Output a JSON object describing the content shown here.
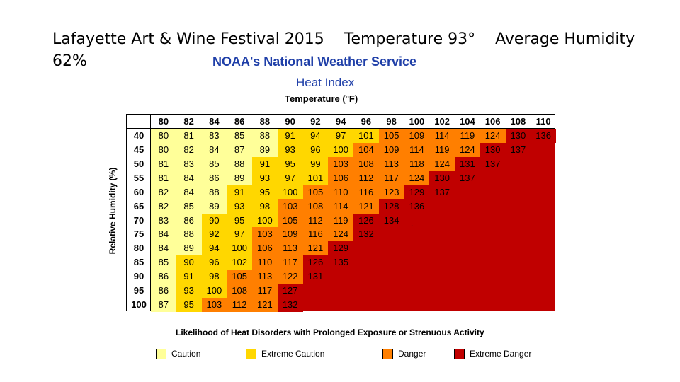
{
  "slide": {
    "title": "Lafayette Art & Wine Festival 2015    Temperature 93°    Average Humidity 62%"
  },
  "source": {
    "agency": "NOAA's National Weather Service"
  },
  "chart_data": {
    "type": "table",
    "title": "Heat Index",
    "xlabel": "Temperature (°F)",
    "ylabel": "Relative Humidity (%)",
    "temperatures": [
      "80",
      "82",
      "84",
      "86",
      "88",
      "90",
      "92",
      "94",
      "96",
      "98",
      "100",
      "102",
      "104",
      "106",
      "108",
      "110"
    ],
    "humidities": [
      "40",
      "45",
      "50",
      "55",
      "60",
      "65",
      "70",
      "75",
      "80",
      "85",
      "90",
      "95",
      "100"
    ],
    "rows": [
      [
        "80",
        "81",
        "83",
        "85",
        "88",
        "91",
        "94",
        "97",
        "101",
        "105",
        "109",
        "114",
        "119",
        "124",
        "130",
        "136"
      ],
      [
        "80",
        "82",
        "84",
        "87",
        "89",
        "93",
        "96",
        "100",
        "104",
        "109",
        "114",
        "119",
        "124",
        "130",
        "137"
      ],
      [
        "81",
        "83",
        "85",
        "88",
        "91",
        "95",
        "99",
        "103",
        "108",
        "113",
        "118",
        "124",
        "131",
        "137"
      ],
      [
        "81",
        "84",
        "86",
        "89",
        "93",
        "97",
        "101",
        "106",
        "112",
        "117",
        "124",
        "130",
        "137"
      ],
      [
        "82",
        "84",
        "88",
        "91",
        "95",
        "100",
        "105",
        "110",
        "116",
        "123",
        "129",
        "137"
      ],
      [
        "82",
        "85",
        "89",
        "93",
        "98",
        "103",
        "108",
        "114",
        "121",
        "128",
        "136"
      ],
      [
        "83",
        "86",
        "90",
        "95",
        "100",
        "105",
        "112",
        "119",
        "126",
        "134"
      ],
      [
        "84",
        "88",
        "92",
        "97",
        "103",
        "109",
        "116",
        "124",
        "132"
      ],
      [
        "84",
        "89",
        "94",
        "100",
        "106",
        "113",
        "121",
        "129"
      ],
      [
        "85",
        "90",
        "96",
        "102",
        "110",
        "117",
        "126",
        "135"
      ],
      [
        "86",
        "91",
        "98",
        "105",
        "113",
        "122",
        "131"
      ],
      [
        "86",
        "93",
        "100",
        "108",
        "117",
        "127"
      ],
      [
        "87",
        "95",
        "103",
        "112",
        "121",
        "132"
      ]
    ],
    "categories": [
      {
        "name": "Caution",
        "color": "#ffff99"
      },
      {
        "name": "Extreme Caution",
        "color": "#ffd700"
      },
      {
        "name": "Danger",
        "color": "#ff7f00"
      },
      {
        "name": "Extreme Danger",
        "color": "#c00000"
      }
    ],
    "legend_title": "Likelihood of Heat Disorders with Prolonged Exposure or Strenuous Activity"
  }
}
